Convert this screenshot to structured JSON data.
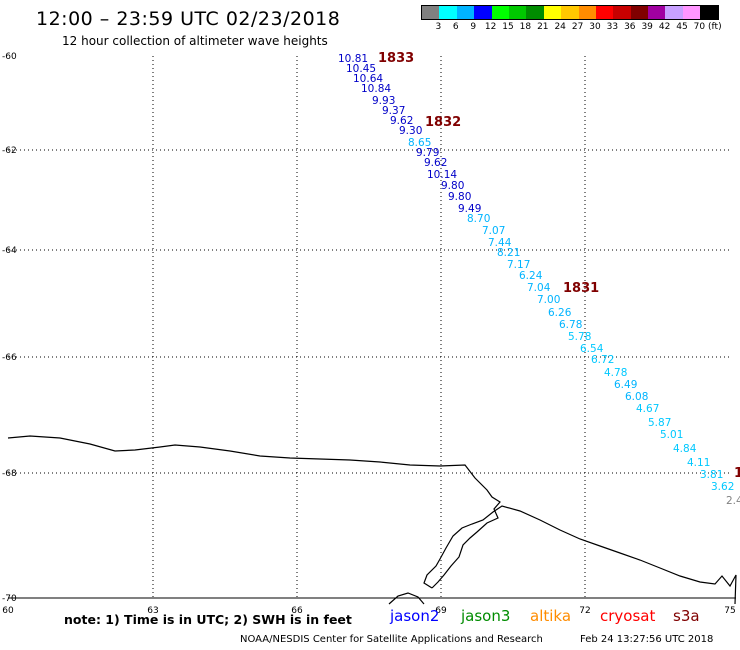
{
  "header": {
    "title": "12:00 – 23:59 UTC 02/23/2018",
    "subtitle": "12 hour collection of altimeter wave heights"
  },
  "legend": {
    "colors": [
      "#808080",
      "#00ffff",
      "#00b4ff",
      "#0000ff",
      "#00ff00",
      "#00c800",
      "#008c00",
      "#ffff00",
      "#ffc800",
      "#ff8c00",
      "#ff0000",
      "#c80000",
      "#800000",
      "#a000a0",
      "#c8a0ff",
      "#ff96ff",
      "#000000"
    ],
    "labels": [
      "3",
      "6",
      "9",
      "12",
      "15",
      "18",
      "21",
      "24",
      "27",
      "30",
      "33",
      "36",
      "39",
      "42",
      "45",
      "70",
      "(ft)"
    ]
  },
  "axes": {
    "lat_labels": [
      "-60",
      "-62",
      "-64",
      "-66",
      "-68",
      "-70"
    ],
    "lon_labels": [
      "60",
      "63",
      "66",
      "69",
      "72",
      "75"
    ]
  },
  "passes": [
    "1833",
    "1832",
    "1831",
    "1"
  ],
  "wave_heights": [
    {
      "v": "10.81",
      "c": "#0000c8"
    },
    {
      "v": "10.45",
      "c": "#0000c8"
    },
    {
      "v": "10.64",
      "c": "#0000c8"
    },
    {
      "v": "10.84",
      "c": "#0000c8"
    },
    {
      "v": "9.93",
      "c": "#0000c8"
    },
    {
      "v": "9.37",
      "c": "#0000c8"
    },
    {
      "v": "9.62",
      "c": "#0000c8"
    },
    {
      "v": "9.30",
      "c": "#0000c8"
    },
    {
      "v": "8.65",
      "c": "#00b4ff"
    },
    {
      "v": "9.79",
      "c": "#0000c8"
    },
    {
      "v": "9.62",
      "c": "#0000c8"
    },
    {
      "v": "10.14",
      "c": "#0000c8"
    },
    {
      "v": "9.80",
      "c": "#0000c8"
    },
    {
      "v": "9.80",
      "c": "#0000c8"
    },
    {
      "v": "9.49",
      "c": "#0000c8"
    },
    {
      "v": "8.70",
      "c": "#00b4ff"
    },
    {
      "v": "7.07",
      "c": "#00b4ff"
    },
    {
      "v": "7.44",
      "c": "#00b4ff"
    },
    {
      "v": "8.21",
      "c": "#00b4ff"
    },
    {
      "v": "7.17",
      "c": "#00b4ff"
    },
    {
      "v": "6.24",
      "c": "#00b4ff"
    },
    {
      "v": "7.04",
      "c": "#00b4ff"
    },
    {
      "v": "7.00",
      "c": "#00b4ff"
    },
    {
      "v": "6.26",
      "c": "#00b4ff"
    },
    {
      "v": "6.78",
      "c": "#00b4ff"
    },
    {
      "v": "5.78",
      "c": "#00c8ff"
    },
    {
      "v": "6.54",
      "c": "#00c8ff"
    },
    {
      "v": "6.72",
      "c": "#00c8ff"
    },
    {
      "v": "4.78",
      "c": "#00c8ff"
    },
    {
      "v": "6.49",
      "c": "#00b4ff"
    },
    {
      "v": "6.08",
      "c": "#00b4ff"
    },
    {
      "v": "4.67",
      "c": "#00c8ff"
    },
    {
      "v": "5.87",
      "c": "#00c8ff"
    },
    {
      "v": "5.01",
      "c": "#00c8ff"
    },
    {
      "v": "4.84",
      "c": "#00c8ff"
    },
    {
      "v": "4.11",
      "c": "#00c8ff"
    },
    {
      "v": "3.81",
      "c": "#00c8ff"
    },
    {
      "v": "3.62",
      "c": "#00c8ff"
    },
    {
      "v": "2.4",
      "c": "#808080"
    }
  ],
  "note": "note:  1) Time is in UTC;  2) SWH is in feet",
  "satellites": [
    {
      "name": "jason2",
      "color": "#0000ff"
    },
    {
      "name": "jason3",
      "color": "#008c00"
    },
    {
      "name": "altika",
      "color": "#ff8c00"
    },
    {
      "name": "cryosat",
      "color": "#ff0000"
    },
    {
      "name": "s3a",
      "color": "#800000"
    }
  ],
  "footer": {
    "credit": "NOAA/NESDIS Center for Satellite Applications and Research",
    "timestamp": "Feb 24 13:27:56 UTC 2018"
  }
}
